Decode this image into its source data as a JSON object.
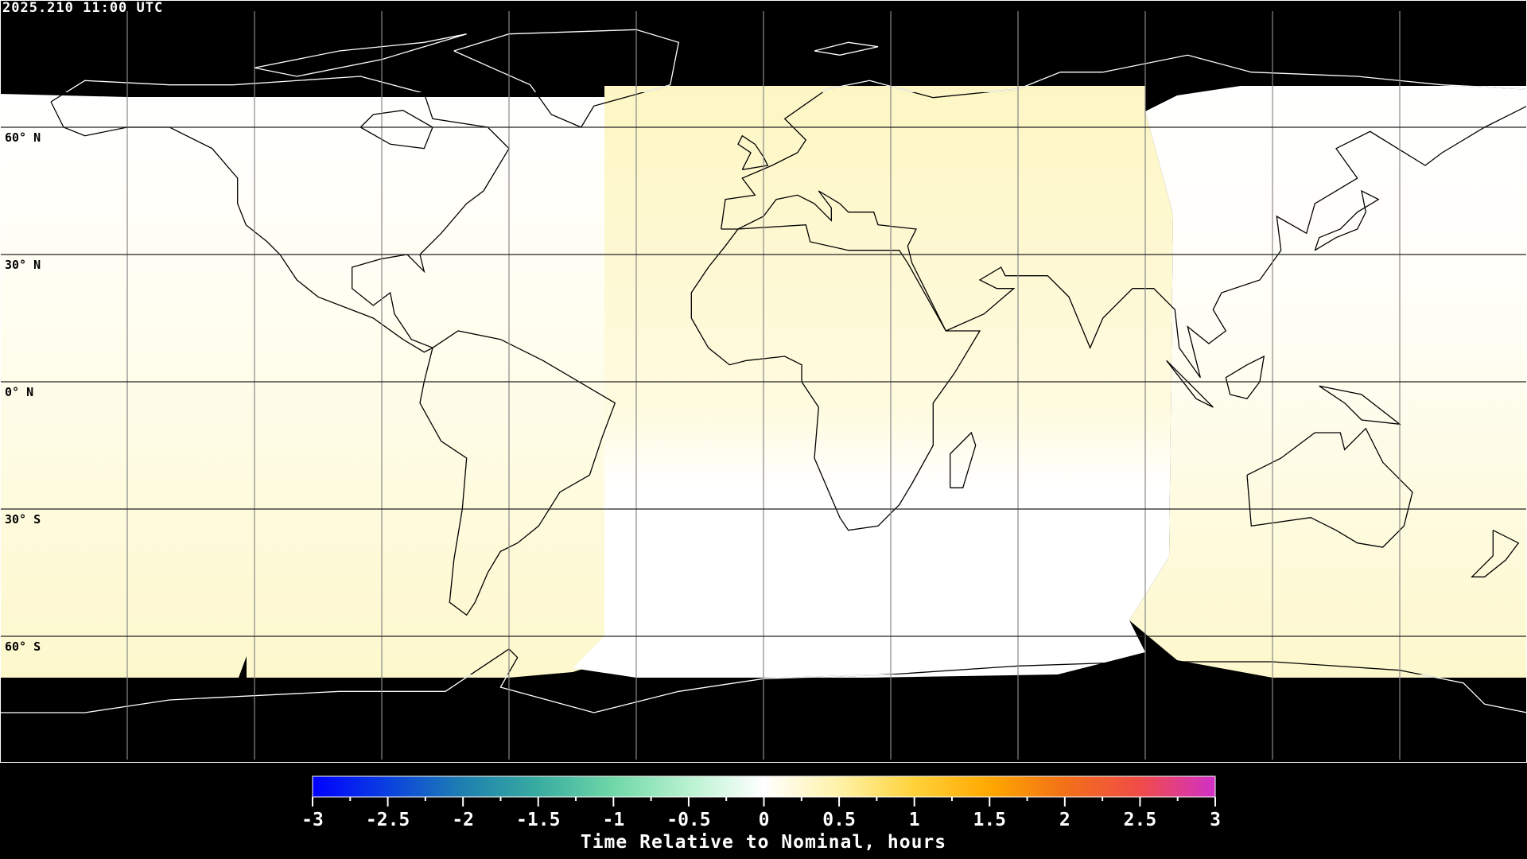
{
  "timestamp": "2025.210 11:00 UTC",
  "map": {
    "projection": "equirectangular",
    "lon_range": [
      -180,
      180
    ],
    "lat_range": [
      -90,
      90
    ],
    "grid_spacing_deg": 30,
    "lat_labels": [
      "60° N",
      "30° N",
      "0° N",
      "30° S",
      "60° S"
    ],
    "no_data_color": "#000000",
    "coastline_color_on_data": "#000000",
    "coastline_color_on_nodata": "#ffffff"
  },
  "colorbar": {
    "title": "Time Relative to Nominal, hours",
    "range": [
      -3,
      3
    ],
    "tick_labels": [
      "-3",
      "-2.5",
      "-2",
      "-1.5",
      "-1",
      "-0.5",
      "0",
      "0.5",
      "1",
      "1.5",
      "2",
      "2.5",
      "3"
    ],
    "colors": [
      "#0000ff",
      "#0a40e0",
      "#1e80b0",
      "#38aca0",
      "#70d8a8",
      "#b8f2d0",
      "#ffffff",
      "#fff2a8",
      "#ffd23a",
      "#ffa800",
      "#f27018",
      "#f04c48",
      "#d030c8"
    ]
  }
}
